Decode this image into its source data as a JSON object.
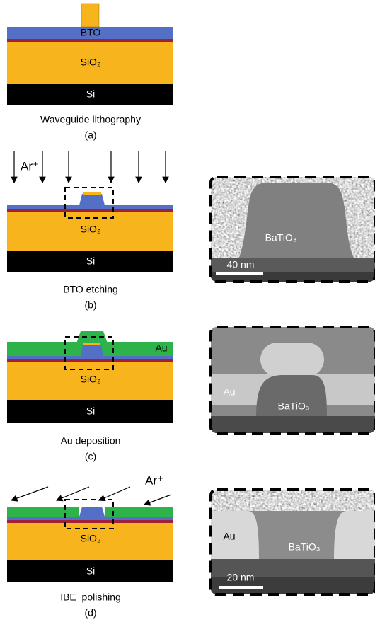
{
  "panels": [
    {
      "top_layer": "BTO",
      "middle_layer": "SiO₂",
      "bottom_layer": "Si",
      "caption": "Waveguide lithography",
      "label": "(a)"
    },
    {
      "ion": "Ar⁺",
      "middle_layer": "SiO₂",
      "bottom_layer": "Si",
      "caption": "BTO etching",
      "label": "(b)",
      "sem": {
        "material": "BaTiO₃",
        "scale": "40 nm"
      }
    },
    {
      "metal": "Au",
      "middle_layer": "SiO₂",
      "bottom_layer": "Si",
      "caption": "Au deposition",
      "label": "(c)",
      "sem": {
        "metal": "Au",
        "material": "BaTiO₃"
      }
    },
    {
      "ion": "Ar⁺",
      "middle_layer": "SiO₂",
      "bottom_layer": "Si",
      "caption": "IBE  polishing",
      "label": "(d)",
      "sem": {
        "metal": "Au",
        "material": "BaTiO₃",
        "scale": "20 nm"
      }
    }
  ]
}
